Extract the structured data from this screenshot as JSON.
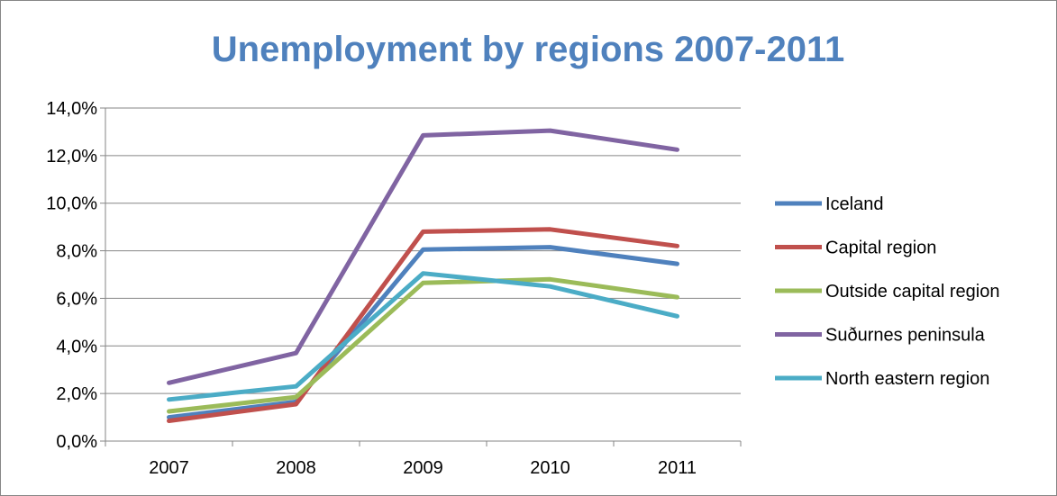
{
  "chart_data": {
    "type": "line",
    "title": "Unemployment by regions 2007-2011",
    "title_color": "#4f81bd",
    "categories": [
      "2007",
      "2008",
      "2009",
      "2010",
      "2011"
    ],
    "ylim": [
      0,
      14
    ],
    "ytick_values": [
      0,
      2,
      4,
      6,
      8,
      10,
      12,
      14
    ],
    "ytick_labels": [
      "0,0%",
      "2,0%",
      "4,0%",
      "6,0%",
      "8,0%",
      "10,0%",
      "12,0%",
      "14,0%"
    ],
    "grid": true,
    "legend_position": "right",
    "series": [
      {
        "name": "Iceland",
        "color": "#4f81bd",
        "values": [
          1.0,
          1.65,
          8.05,
          8.15,
          7.45
        ]
      },
      {
        "name": "Capital region",
        "color": "#c0504d",
        "values": [
          0.85,
          1.55,
          8.8,
          8.9,
          8.2
        ]
      },
      {
        "name": "Outside capital region",
        "color": "#9bbb59",
        "values": [
          1.25,
          1.85,
          6.65,
          6.8,
          6.05
        ]
      },
      {
        "name": "Suðurnes peninsula",
        "color": "#8064a2",
        "values": [
          2.45,
          3.7,
          12.85,
          13.05,
          12.25
        ]
      },
      {
        "name": "North eastern region",
        "color": "#4bacc6",
        "values": [
          1.75,
          2.3,
          7.05,
          6.5,
          5.25
        ]
      }
    ]
  }
}
